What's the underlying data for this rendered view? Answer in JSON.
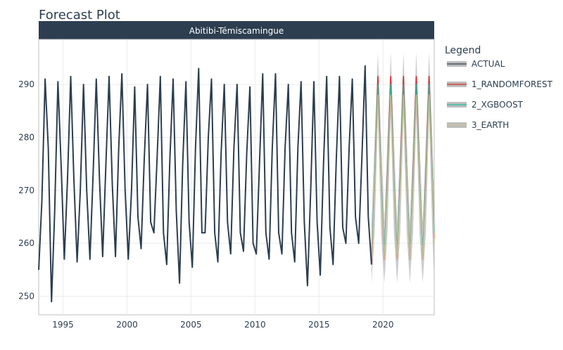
{
  "chart_data": {
    "type": "line",
    "title": "Forecast Plot",
    "facet_label": "Abitibi-Témiscamingue",
    "xlim": [
      1993.1,
      2024.0
    ],
    "ylim": [
      246.5,
      298.5
    ],
    "grid": true,
    "legend_placement": "right",
    "x_ticks": [
      1995,
      2000,
      2005,
      2010,
      2015,
      2020
    ],
    "x_tick_labels": [
      "1995",
      "2000",
      "2005",
      "2010",
      "2015",
      "2020"
    ],
    "y_ticks": [
      250,
      260,
      270,
      280,
      290
    ],
    "y_tick_labels": [
      "250",
      "260",
      "270",
      "280",
      "290"
    ],
    "legend": {
      "title": "Legend",
      "items": [
        {
          "label": "ACTUAL",
          "color": "#2c3e50"
        },
        {
          "label": "1_RANDOMFOREST",
          "color": "#e31a1c"
        },
        {
          "label": "2_XGBOOST",
          "color": "#18bc9c"
        },
        {
          "label": "3_EARTH",
          "color": "#ccbe93"
        }
      ]
    },
    "actual": {
      "name": "ACTUAL",
      "x": [
        1993.1,
        1993.35,
        1993.6,
        1993.85,
        1994.1,
        1994.35,
        1994.6,
        1994.85,
        1995.1,
        1995.35,
        1995.6,
        1995.85,
        1996.1,
        1996.35,
        1996.6,
        1996.85,
        1997.1,
        1997.35,
        1997.6,
        1997.85,
        1998.1,
        1998.35,
        1998.6,
        1998.85,
        1999.1,
        1999.35,
        1999.6,
        1999.85,
        2000.1,
        2000.35,
        2000.6,
        2000.85,
        2001.1,
        2001.35,
        2001.6,
        2001.85,
        2002.1,
        2002.35,
        2002.6,
        2002.85,
        2003.1,
        2003.35,
        2003.6,
        2003.85,
        2004.1,
        2004.35,
        2004.6,
        2004.85,
        2005.1,
        2005.35,
        2005.6,
        2005.85,
        2006.1,
        2006.35,
        2006.6,
        2006.85,
        2007.1,
        2007.35,
        2007.6,
        2007.85,
        2008.1,
        2008.35,
        2008.6,
        2008.85,
        2009.1,
        2009.35,
        2009.6,
        2009.85,
        2010.1,
        2010.35,
        2010.6,
        2010.85,
        2011.1,
        2011.35,
        2011.6,
        2011.85,
        2012.1,
        2012.35,
        2012.6,
        2012.85,
        2013.1,
        2013.35,
        2013.6,
        2013.85,
        2014.1,
        2014.35,
        2014.6,
        2014.85,
        2015.1,
        2015.35,
        2015.6,
        2015.85,
        2016.1,
        2016.35,
        2016.6,
        2016.85,
        2017.1,
        2017.35,
        2017.6,
        2017.85,
        2018.1,
        2018.35,
        2018.6,
        2018.85,
        2019.1
      ],
      "y": [
        255,
        268,
        291,
        278,
        249,
        266,
        290.5,
        275,
        257,
        272,
        291.5,
        272,
        256.5,
        270,
        290,
        270,
        257,
        273,
        291,
        272,
        257.5,
        275,
        291.5,
        271,
        257.5,
        278,
        292,
        270,
        257,
        270,
        289.5,
        265,
        259,
        276,
        290,
        264,
        262,
        276,
        291.5,
        262,
        256,
        276,
        291,
        266,
        252.5,
        275,
        290.5,
        264,
        255.5,
        278,
        293,
        262,
        262,
        280,
        291,
        262,
        256.5,
        277,
        290,
        264,
        258,
        278,
        290,
        262,
        258.5,
        277,
        289.5,
        260,
        258,
        275,
        292,
        262,
        257,
        278,
        292,
        262,
        258,
        278,
        290,
        262,
        256.5,
        278,
        290.5,
        264,
        252,
        270,
        290.5,
        264,
        254,
        275,
        291.5,
        263,
        256,
        276,
        291.5,
        263,
        260,
        278,
        291,
        265,
        260,
        276,
        293.5,
        265,
        256
      ]
    },
    "forecast": {
      "x": [
        2019.1,
        2019.35,
        2019.6,
        2019.85,
        2020.1,
        2020.35,
        2020.6,
        2020.85,
        2021.1,
        2021.35,
        2021.6,
        2021.85,
        2022.1,
        2022.35,
        2022.6,
        2022.85,
        2023.1,
        2023.35,
        2023.6,
        2023.85,
        2024.0
      ],
      "series": [
        {
          "name": "1_RANDOMFOREST",
          "y": [
            256,
            272,
            291.5,
            272,
            257,
            273,
            291.5,
            272,
            257,
            273,
            291.5,
            272,
            257,
            273,
            291.5,
            272,
            257,
            273,
            291.5,
            272,
            261
          ]
        },
        {
          "name": "2_XGBOOST",
          "y": [
            258,
            272,
            290,
            272,
            258,
            272,
            290,
            272,
            258,
            272,
            290,
            272,
            258,
            272,
            290,
            272,
            258,
            272,
            290,
            272,
            262
          ]
        },
        {
          "name": "3_EARTH",
          "y": [
            257,
            271,
            288,
            271,
            257,
            271,
            288,
            271,
            257,
            271,
            288,
            271,
            257,
            271,
            288,
            271,
            257,
            271,
            288,
            271,
            260
          ]
        }
      ],
      "band": {
        "upper": [
          264,
          280,
          296,
          280,
          264,
          280,
          296,
          280,
          264,
          280,
          296,
          280,
          264,
          280,
          296,
          280,
          264,
          280,
          296,
          280,
          269
        ],
        "lower": [
          252.5,
          262,
          284,
          262,
          252.5,
          262,
          284,
          262,
          252.5,
          262,
          284,
          262,
          252.5,
          262,
          284,
          262,
          252.5,
          262,
          284,
          262,
          253
        ]
      }
    }
  }
}
